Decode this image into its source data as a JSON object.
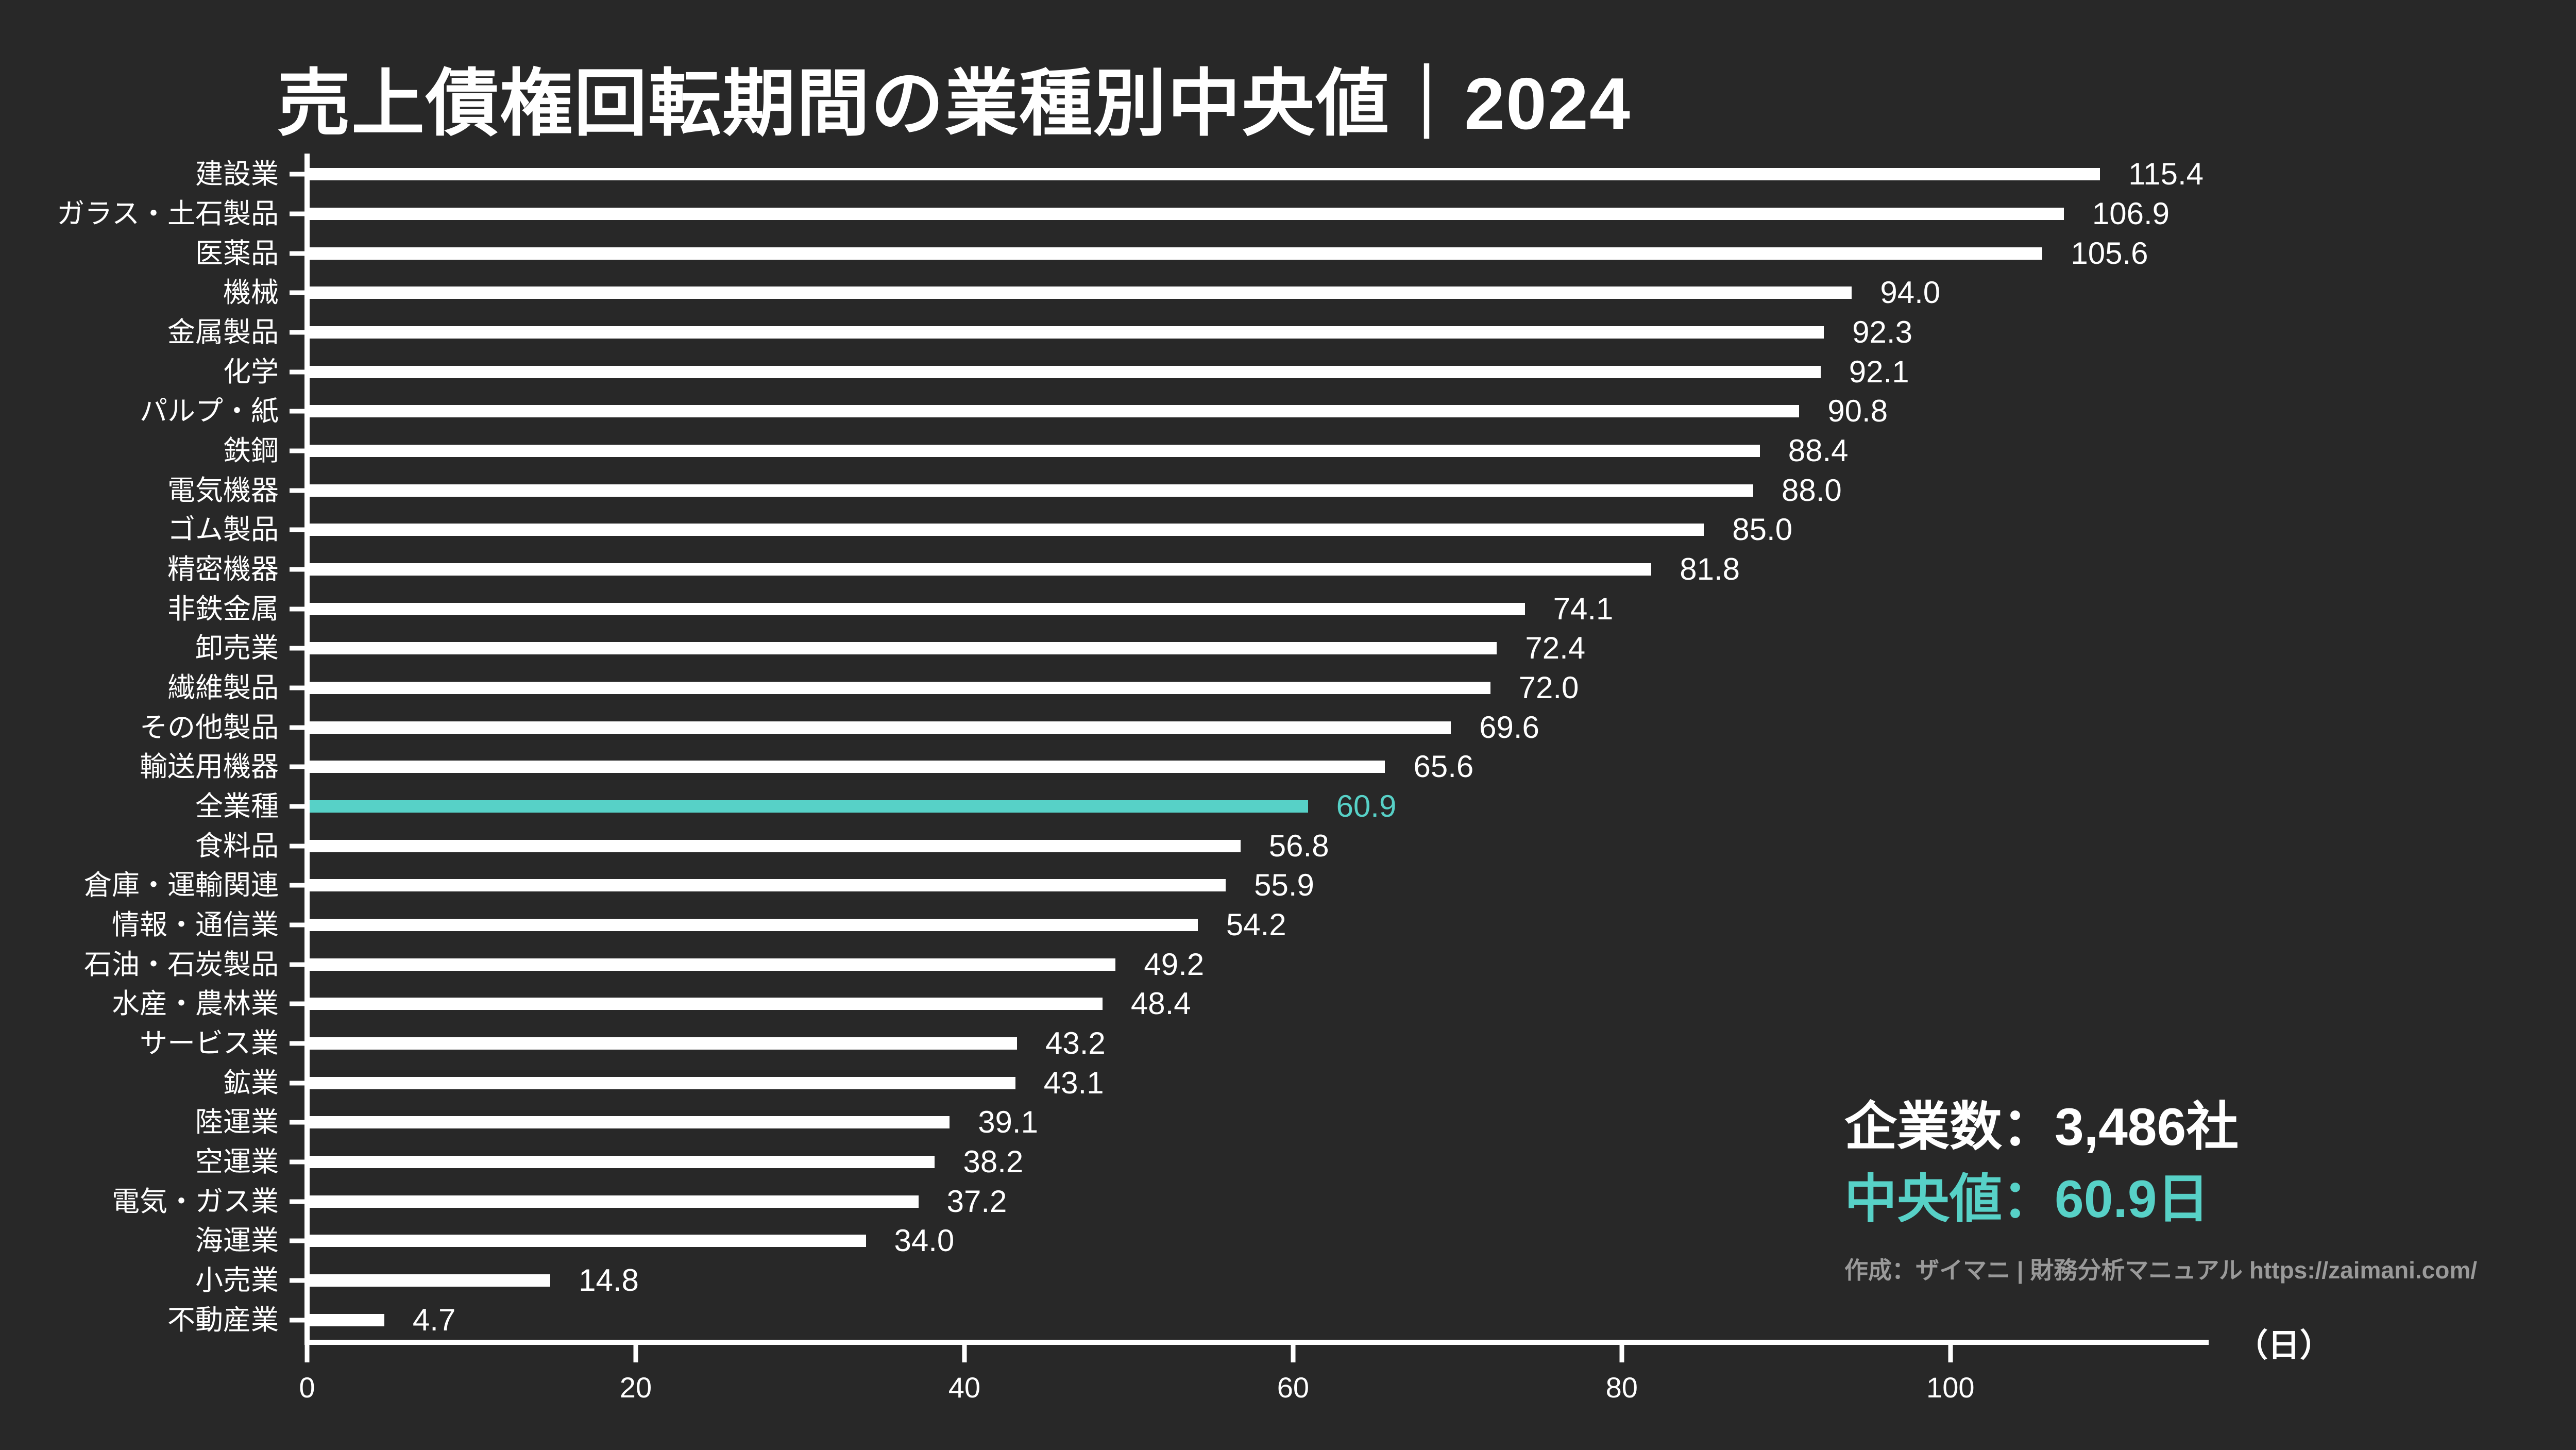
{
  "title": "売上債権回転期間の業種別中央値｜2024",
  "chart_data": {
    "type": "bar",
    "orientation": "horizontal",
    "title": "売上債権回転期間の業種別中央値｜2024",
    "unit_label": "（日）",
    "x_ticks": [
      0,
      20,
      40,
      60,
      80,
      100
    ],
    "xlim": [
      0,
      115.4
    ],
    "grid": false,
    "categories": [
      "建設業",
      "ガラス・土石製品",
      "医薬品",
      "機械",
      "金属製品",
      "化学",
      "パルプ・紙",
      "鉄鋼",
      "電気機器",
      "ゴム製品",
      "精密機器",
      "非鉄金属",
      "卸売業",
      "繊維製品",
      "その他製品",
      "輸送用機器",
      "全業種",
      "食料品",
      "倉庫・運輸関連",
      "情報・通信業",
      "石油・石炭製品",
      "水産・農林業",
      "サービス業",
      "鉱業",
      "陸運業",
      "空運業",
      "電気・ガス業",
      "海運業",
      "小売業",
      "不動産業"
    ],
    "values": [
      115.4,
      106.9,
      105.6,
      94.0,
      92.3,
      92.1,
      90.8,
      88.4,
      88.0,
      85.0,
      81.8,
      74.1,
      72.4,
      72.0,
      69.6,
      65.6,
      60.9,
      56.8,
      55.9,
      54.2,
      49.2,
      48.4,
      43.2,
      43.1,
      39.1,
      38.2,
      37.2,
      34.0,
      14.8,
      4.7
    ],
    "highlight_index": 16,
    "highlight_category": "全業種",
    "bar_color": "#ffffff",
    "highlight_color": "#57d1c7"
  },
  "stats": {
    "company_count": "企業数：3,486社",
    "median": "中央値：60.9日",
    "attribution": "作成：ザイマニ | 財務分析マニュアル https://zaimani.com/"
  },
  "colors": {
    "background": "#282828",
    "text": "#ffffff",
    "accent": "#57d1c7",
    "muted": "#9a9a9a"
  }
}
